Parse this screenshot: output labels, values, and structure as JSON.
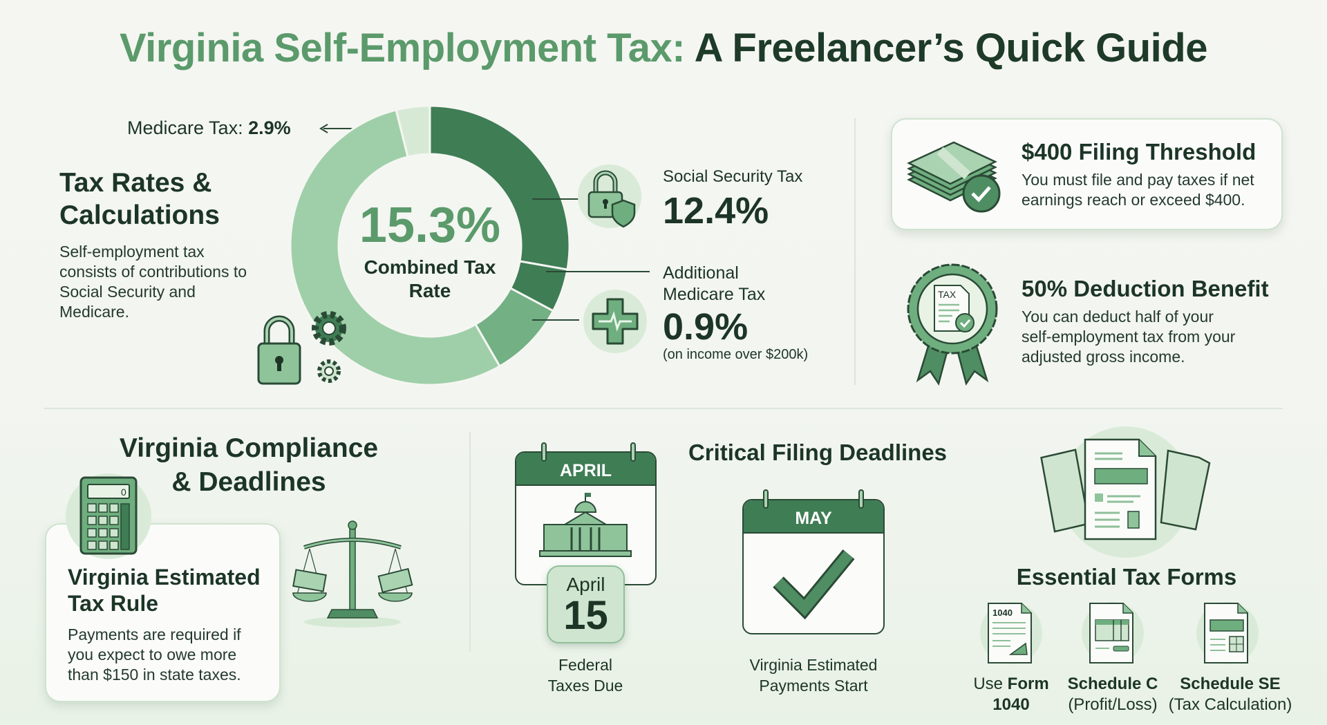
{
  "title": {
    "part1": "Virginia Self-Employment Tax:",
    "part2": " A Freelancer’s Quick Guide"
  },
  "tax_rates": {
    "heading_line1": "Tax Rates &",
    "heading_line2": "Calculations",
    "body_lines": [
      "Self-employment tax",
      "consists of contributions to",
      "Social Security and",
      "Medicare."
    ]
  },
  "donut": {
    "center_value": "15.3%",
    "center_label_line1": "Combined Tax",
    "center_label_line2": "Rate",
    "medicare_label": "Medicare Tax: ",
    "medicare_value": "2.9%",
    "social_security_label": "Social Security Tax",
    "social_security_value": "12.4%",
    "additional_label_line1": "Additional",
    "additional_label_line2": "Medicare Tax",
    "additional_value": "0.9%",
    "additional_note": "(on income over $200k)",
    "colors": {
      "dark": "#3f7d55",
      "mid": "#73b083",
      "light": "#9fcfa8",
      "pale": "#d6e9d5"
    }
  },
  "threshold": {
    "heading": "$400 Filing Threshold",
    "body_lines": [
      "You must file and pay taxes if net",
      "earnings reach or exceed $400."
    ]
  },
  "deduction": {
    "badge_text": "TAX",
    "heading": "50% Deduction Benefit",
    "body_lines": [
      "You can deduct half of your",
      "self-employment tax from your",
      "adjusted gross income."
    ]
  },
  "compliance": {
    "heading_line1": "Virginia Compliance",
    "heading_line2": "& Deadlines",
    "calculator_display": "0",
    "card_heading_line1": "Virginia Estimated",
    "card_heading_line2": "Tax Rule",
    "card_body_lines": [
      "Payments are required if",
      "you expect to owe more",
      "than $150 in state taxes."
    ]
  },
  "deadlines": {
    "heading": "Critical Filing Deadlines",
    "april": {
      "month": "APRIL",
      "badge_month": "April",
      "badge_day": "15",
      "label_line1": "Federal",
      "label_line2": "Taxes Due"
    },
    "may": {
      "month": "MAY",
      "label_line1": "Virginia Estimated",
      "label_line2": "Payments Start"
    }
  },
  "forms": {
    "heading": "Essential Tax Forms",
    "items": [
      {
        "icon_text": "1040",
        "line1_prefix": "Use ",
        "line1_bold": "Form",
        "line2": "1040"
      },
      {
        "line1_bold": "Schedule C",
        "line2": "(Profit/Loss)"
      },
      {
        "line1_bold": "Schedule SE",
        "line2": "(Tax Calculation)"
      }
    ]
  }
}
